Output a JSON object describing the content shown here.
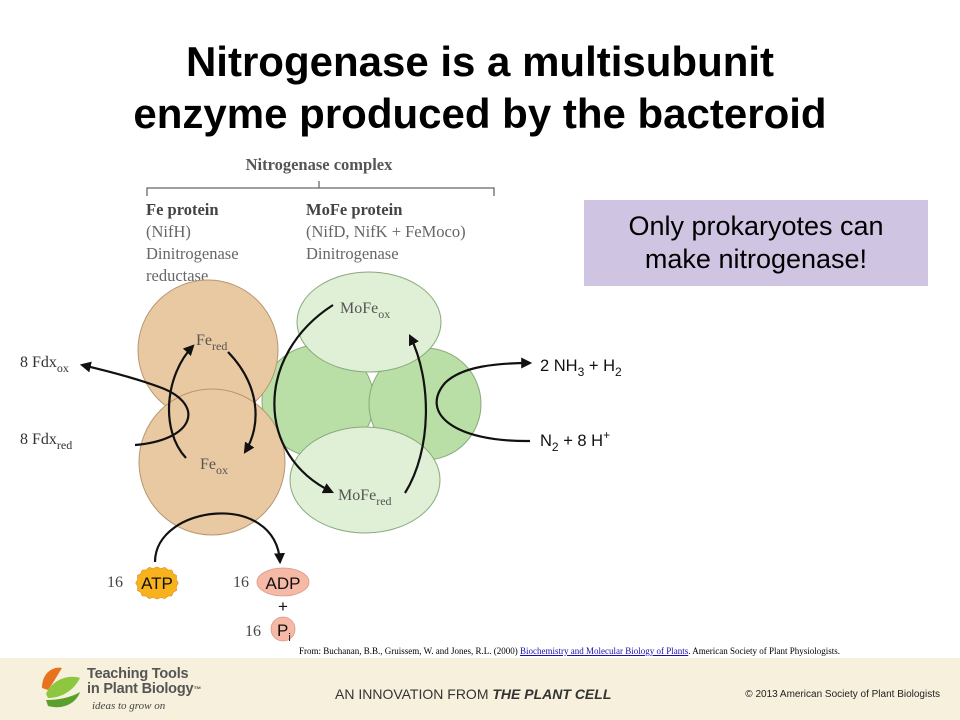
{
  "slide": {
    "title_line1": "Nitrogenase is a multisubunit",
    "title_line2": "enzyme produced by the bacteroid",
    "note_line1": "Only prokaryotes can",
    "note_line2": "make nitrogenase!"
  },
  "diagram": {
    "complex_label": "Nitrogenase complex",
    "fe_protein": {
      "title": "Fe protein",
      "line1": "(NifH)",
      "line2": "Dinitrogenase",
      "line3": "reductase"
    },
    "mofe_protein": {
      "title": "MoFe protein",
      "line1": "(NifD, NifK + FeMoco)",
      "line2": "Dinitrogenase"
    },
    "fe_red": {
      "base": "Fe",
      "sub": "red"
    },
    "fe_ox": {
      "base": "Fe",
      "sub": "ox"
    },
    "mofe_ox": {
      "base": "MoFe",
      "sub": "ox"
    },
    "mofe_red": {
      "base": "MoFe",
      "sub": "red"
    },
    "fdx_ox": {
      "base": "8 Fdx",
      "sub": "ox"
    },
    "fdx_red": {
      "base": "8 Fdx",
      "sub": "red"
    },
    "product": {
      "a": "2 NH",
      "a_sub": "3",
      "b": " + H",
      "b_sub": "2"
    },
    "substrate": {
      "a": "N",
      "a_sub": "2",
      "b": " + 8 H",
      "b_sup": "+"
    },
    "atp": {
      "count": "16",
      "label": "ATP"
    },
    "adp": {
      "count": "16",
      "label": "ADP"
    },
    "plus": "+",
    "pi": {
      "count": "16",
      "label": "P",
      "sub": "i"
    }
  },
  "colors": {
    "fe_fill": "#e9c9a2",
    "mofe_fill": "#dff0d6",
    "core_fill": "#b9dfa6",
    "note_bg": "#cfc5e3",
    "atp_star": "#f7b21e",
    "adp_fill": "#f6b9a6",
    "footer_bg": "#f6f0dc"
  },
  "citation": {
    "prefix": "From: Buchanan, B.B., Gruissem, W. and Jones, R.L. (2000) ",
    "book": "Biochemistry and Molecular Biology of Plants",
    "suffix": ". American Society of Plant Physiologists."
  },
  "footer": {
    "brand_line1": "Teaching Tools",
    "brand_line2": "in Plant Biology",
    "brand_tm": "™",
    "tagline": "ideas to grow on",
    "innovation_prefix": "AN INNOVATION FROM ",
    "innovation_bold": "THE PLANT CELL",
    "copyright": "© 2013 American Society of Plant Biologists"
  }
}
